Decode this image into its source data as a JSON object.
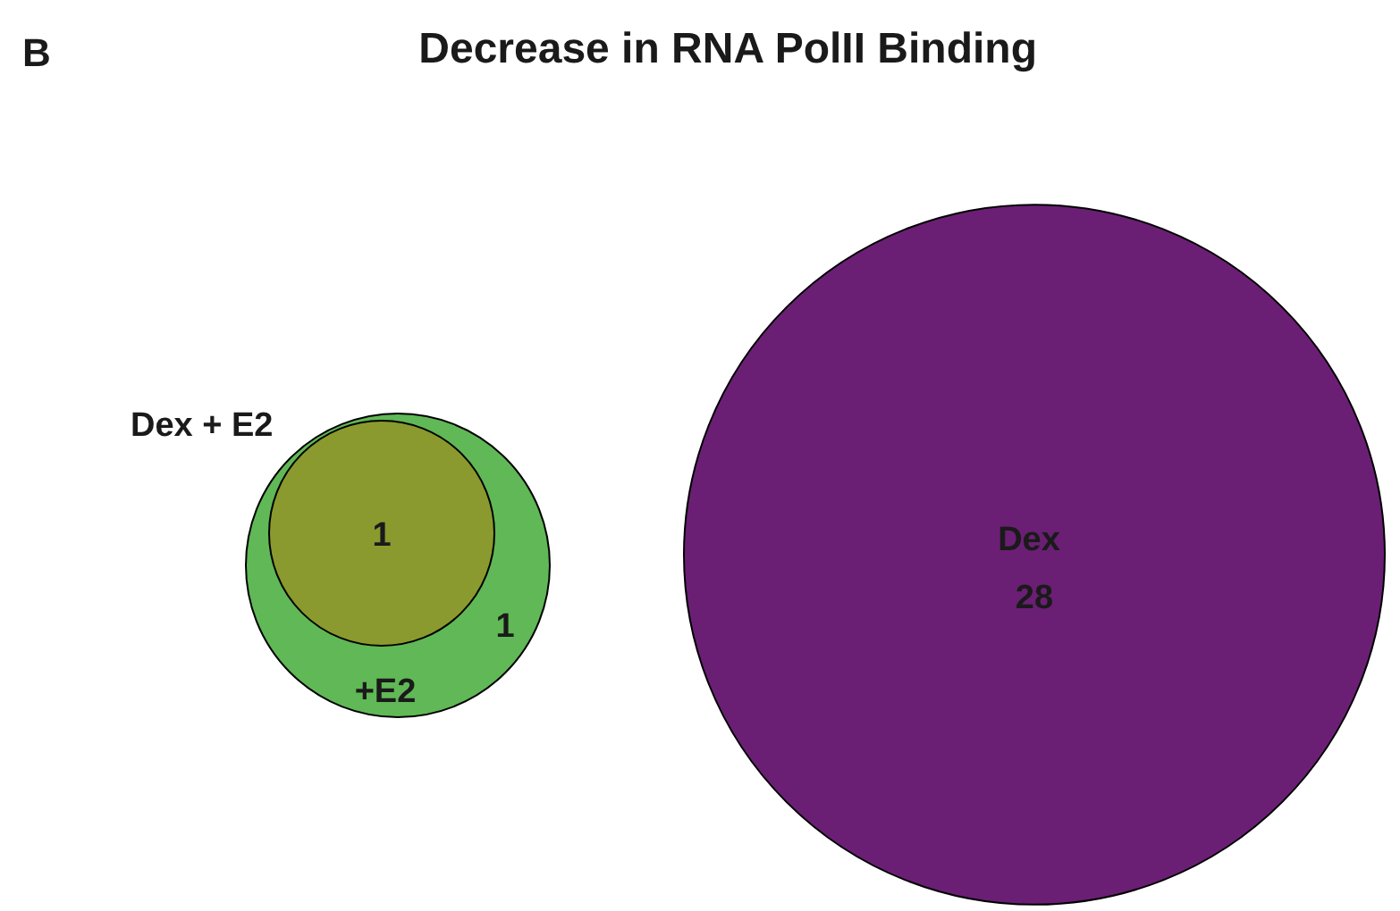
{
  "chart_data": {
    "type": "other",
    "title": "Decrease in RNA PolII Binding",
    "categories": [
      "Dex  + E2",
      "+E2",
      "Dex"
    ],
    "values": [
      1,
      1,
      28
    ],
    "colors": [
      "#8a9a2e",
      "#60b856",
      "#6a1f74"
    ],
    "data_labels": true,
    "annotations": [
      "B"
    ]
  }
}
